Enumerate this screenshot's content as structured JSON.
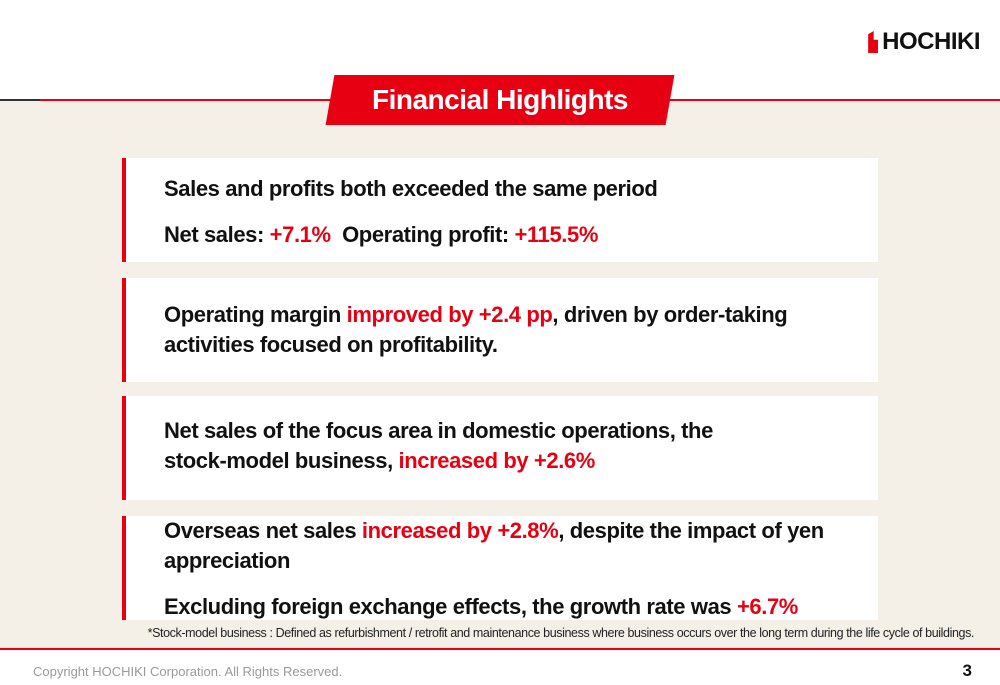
{
  "logo": {
    "text": "HOCHIKI"
  },
  "title": "Financial Highlights",
  "cards": [
    {
      "line1": "Sales and profits both exceeded the same period",
      "line2": {
        "label1": "Net sales: ",
        "value1": "+7.1%",
        "label2": "Operating profit: ",
        "value2": "+115.5%"
      }
    },
    {
      "text1": "Operating margin ",
      "highlight": "improved by +2.4 pp",
      "text2": ", driven by order-taking",
      "text3": "activities focused on profitability."
    },
    {
      "text1": "Net sales of the focus area in domestic operations, the",
      "text2": "stock-model business, ",
      "highlight": "increased by +2.6%"
    },
    {
      "text1": "Overseas net sales ",
      "highlight": "increased by +2.8%",
      "text2": ", despite the impact of yen",
      "text3": "appreciation",
      "text4": "Excluding foreign exchange effects, the growth rate was ",
      "highlight2": "+6.7%"
    }
  ],
  "footnote": "*Stock-model business : Defined as refurbishment / retrofit and maintenance business where business occurs over the long term during the life cycle of buildings.",
  "footer": {
    "copyright": "Copyright HOCHIKI Corporation. All Rights Reserved.",
    "page_number": "3"
  },
  "colors": {
    "accent": "#e60012",
    "background": "#f4efe7"
  }
}
